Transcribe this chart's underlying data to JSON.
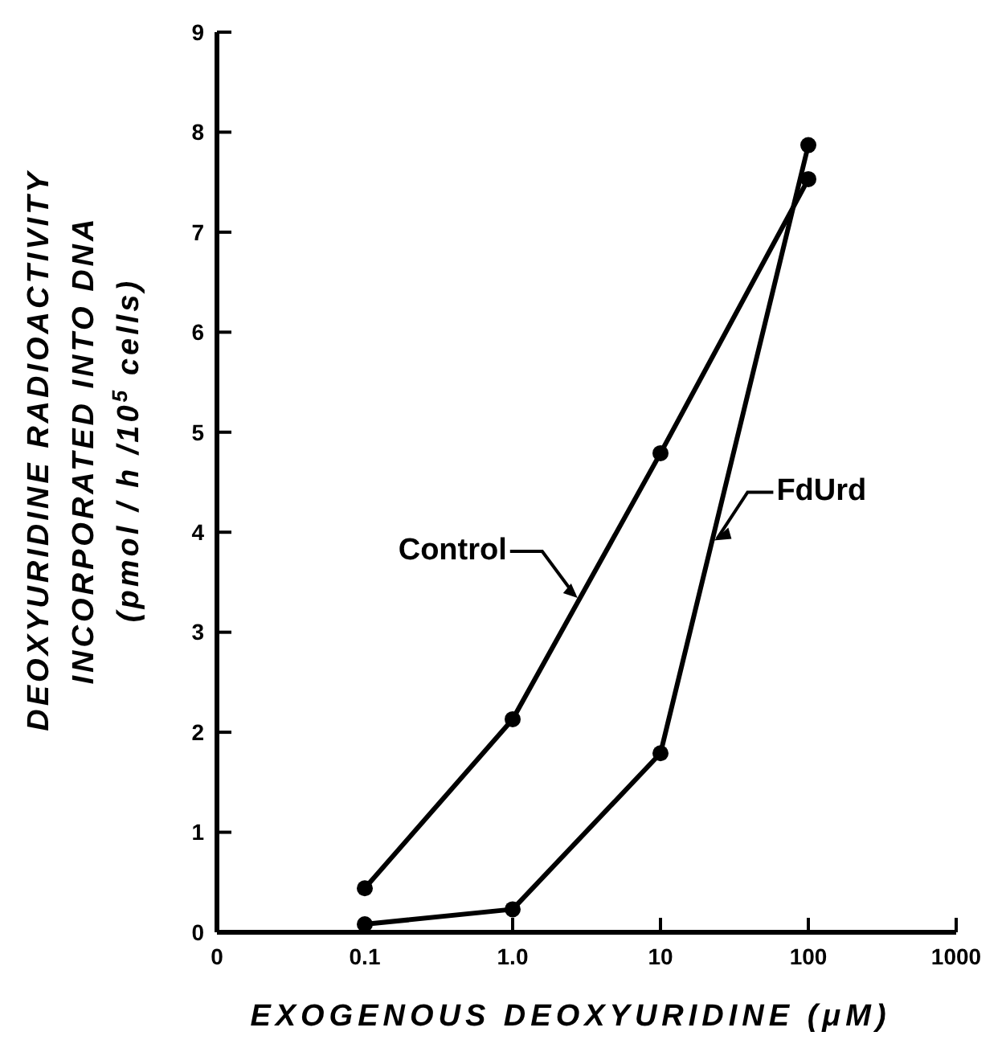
{
  "chart_data": {
    "type": "line",
    "xlabel": "EXOGENOUS DEOXYURIDINE (μM)",
    "ylabel": "DEOXYURIDINE RADIOACTIVITY\nINCORPORATED INTO DNA\n(pmol / h /10$^{5}$ cells)",
    "categories": [
      "0",
      "0.1",
      "1.0",
      "10",
      "100",
      "1000"
    ],
    "series": [
      {
        "name": "Control",
        "color": "#000000",
        "values": [
          null,
          0.44,
          2.13,
          4.79,
          7.53,
          null
        ]
      },
      {
        "name": "FdUrd",
        "color": "#000000",
        "values": [
          null,
          0.08,
          0.23,
          1.79,
          7.87,
          null
        ]
      }
    ],
    "ylim": [
      0,
      9
    ],
    "yticks": [
      0,
      1,
      2,
      3,
      4,
      5,
      6,
      7,
      8,
      9
    ],
    "marker": "circle",
    "line_style": "solid"
  }
}
